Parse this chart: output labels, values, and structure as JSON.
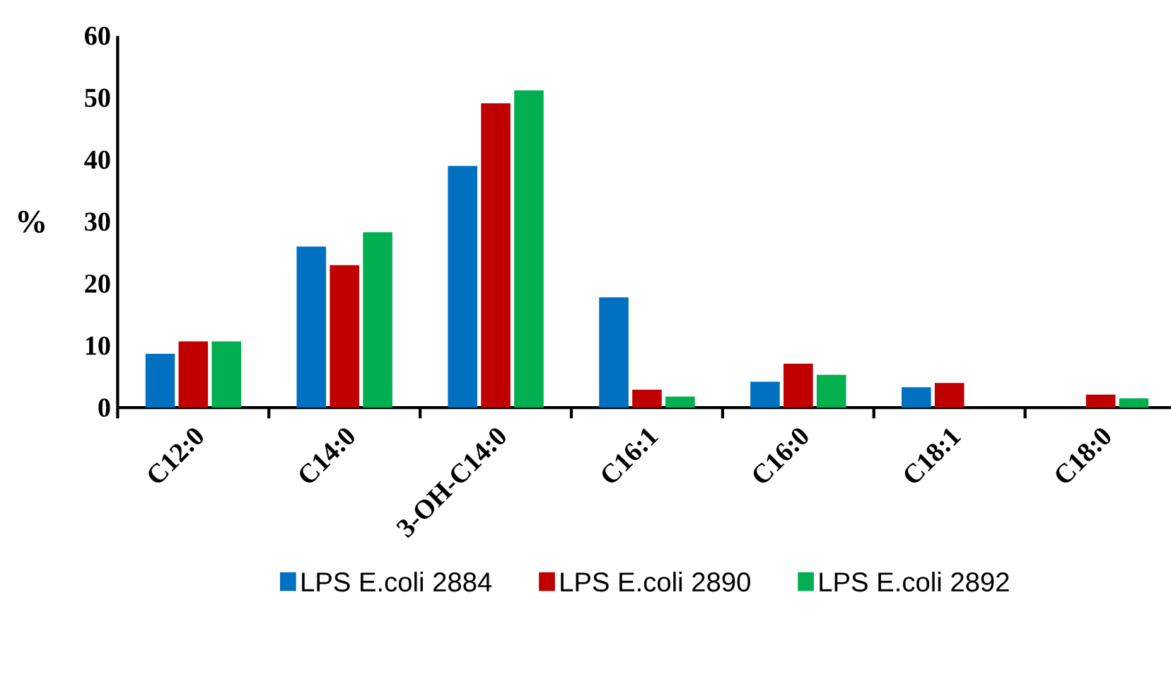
{
  "chart_data": {
    "type": "bar",
    "ylabel": "%",
    "categories": [
      "C12:0",
      "C14:0",
      "3-OH-C14:0",
      "C16:1",
      "C16:0",
      "C18:1",
      "C18:0"
    ],
    "series": [
      {
        "name": "LPS E.coli 2884",
        "color": "#0070c0",
        "values": [
          8.7,
          26.0,
          39.0,
          17.8,
          4.2,
          3.3,
          0
        ]
      },
      {
        "name": "LPS E.coli  2890",
        "color": "#c00000",
        "values": [
          10.7,
          23.0,
          49.1,
          2.9,
          7.1,
          4.0,
          2.1
        ]
      },
      {
        "name": "LPS E.coli  2892",
        "color": "#00b050",
        "values": [
          10.7,
          28.3,
          51.2,
          1.8,
          5.3,
          0,
          1.5
        ]
      }
    ],
    "ylim": [
      0,
      60
    ],
    "yticks": [
      0,
      10,
      20,
      30,
      40,
      50,
      60
    ],
    "grid": false,
    "legend": "bottom"
  }
}
